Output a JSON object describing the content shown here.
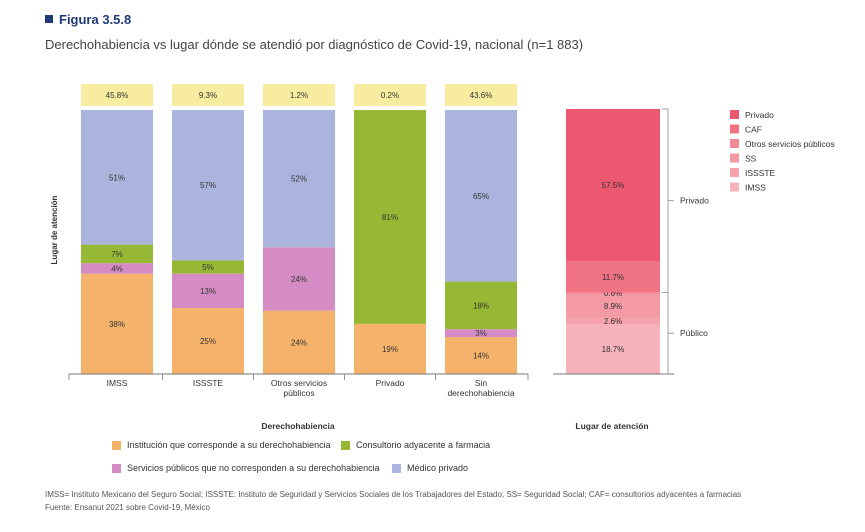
{
  "figure": {
    "label": "Figura 3.5.8",
    "title": "Derechohabiencia vs lugar dónde se atendió por diagnóstico de Covid-19, nacional (n=1 883)"
  },
  "chart_data": [
    {
      "type": "bar",
      "stacked": true,
      "categories": [
        "IMSS",
        "ISSSTE",
        "Otros servicios públicos",
        "Privado",
        "Sin derechohabiencia"
      ],
      "top_labels": [
        "45.8%",
        "9.3%",
        "1.2%",
        "0.2%",
        "43.6%"
      ],
      "series": [
        {
          "name": "Institución que corresponde a su derechohabiencia",
          "color": "#f4b26b",
          "values": [
            38,
            25,
            24,
            19,
            14
          ]
        },
        {
          "name": "Servicios públicos que no corresponden a su derechohabiencia",
          "color": "#d58cc4",
          "values": [
            4,
            13,
            24,
            0,
            3
          ]
        },
        {
          "name": "Consultorio adyacente a farmacia",
          "color": "#97b835",
          "values": [
            7,
            5,
            0,
            81,
            18
          ]
        },
        {
          "name": "Médico privado",
          "color": "#aab4dc",
          "values": [
            51,
            57,
            52,
            0,
            65
          ]
        }
      ],
      "xlabel": "Derechohabiencia",
      "ylabel": "Lugar de atención",
      "top_label_bg": "#f8eca0"
    },
    {
      "type": "bar",
      "stacked": true,
      "xlabel": "Lugar de atención",
      "segments": [
        {
          "name": "IMSS",
          "value": 18.7,
          "label": "18.7%",
          "color": "#f6b3bb"
        },
        {
          "name": "ISSSTE",
          "value": 2.6,
          "label": "2.6%",
          "color": "#f6a2ac"
        },
        {
          "name": "SS",
          "value": 8.9,
          "label": "8.9%",
          "color": "#f49aa5"
        },
        {
          "name": "Otros servicios públicos",
          "value": 0.6,
          "label": "0.6%",
          "color": "#f18897"
        },
        {
          "name": "CAF",
          "value": 11.7,
          "label": "11.7%",
          "color": "#f07383"
        },
        {
          "name": "Privado",
          "value": 57.5,
          "label": "57.5%",
          "color": "#ec5870"
        }
      ],
      "brackets": [
        {
          "label": "Privado",
          "from": 30.8,
          "to": 100
        },
        {
          "label": "Público",
          "from": 0,
          "to": 30.8
        }
      ],
      "legend_order": [
        "Privado",
        "CAF",
        "Otros servicios públicos",
        "SS",
        "ISSSTE",
        "IMSS"
      ]
    }
  ],
  "footnotes": [
    "IMSS= Instituto Mexicano del Seguro Social; ISSSTE: Instituto de Seguridad y Servicios Sociales de los Trabajadores del Estado; SS= Seguridad Social; CAF= consultorios adyacentes a farmacias",
    "Fuente: Ensanut 2021 sobre Covid-19, México"
  ]
}
